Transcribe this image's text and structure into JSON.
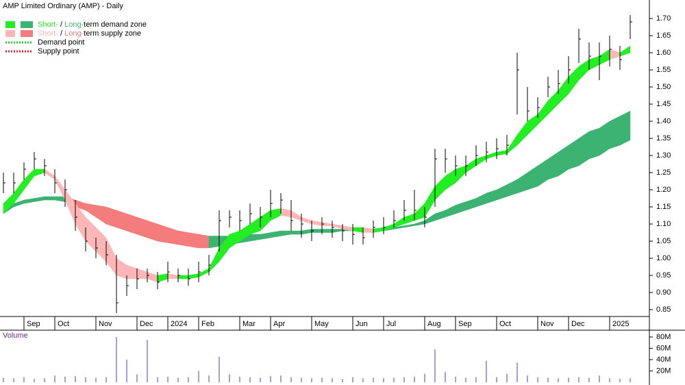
{
  "chart_data": {
    "type": "ohlc",
    "title": "AMP Limited Ordinary (AMP) - Daily",
    "categories": [
      null,
      null,
      "Sep",
      null,
      null,
      "Oct",
      null,
      null,
      null,
      "Nov",
      null,
      null,
      null,
      "Dec",
      null,
      null,
      "2024",
      null,
      null,
      "Feb",
      null,
      null,
      null,
      "Mar",
      null,
      null,
      "Apr",
      null,
      null,
      null,
      "May",
      null,
      null,
      null,
      "Jun",
      null,
      null,
      "Jul",
      null,
      null,
      null,
      "Aug",
      null,
      null,
      "Sep",
      null,
      null,
      null,
      "Oct",
      null,
      null,
      null,
      "Nov",
      null,
      null,
      "Dec",
      null,
      null,
      null,
      "2025",
      null,
      null
    ],
    "high": [
      1.25,
      1.25,
      1.28,
      1.31,
      1.29,
      1.26,
      1.23,
      1.17,
      1.09,
      1.06,
      1.05,
      1.01,
      0.95,
      0.97,
      0.97,
      0.96,
      0.99,
      0.97,
      0.97,
      0.99,
      1.01,
      1.14,
      1.14,
      1.14,
      1.16,
      1.15,
      1.2,
      1.19,
      1.17,
      1.13,
      1.11,
      1.12,
      1.11,
      1.1,
      1.1,
      1.09,
      1.11,
      1.12,
      1.14,
      1.17,
      1.2,
      1.15,
      1.32,
      1.32,
      1.3,
      1.3,
      1.33,
      1.34,
      1.35,
      1.36,
      1.6,
      1.5,
      1.47,
      1.53,
      1.55,
      1.59,
      1.67,
      1.63,
      1.63,
      1.65,
      1.62,
      1.71
    ],
    "low": [
      1.19,
      1.19,
      1.23,
      1.26,
      1.24,
      1.19,
      1.15,
      1.08,
      1.02,
      1.0,
      0.98,
      0.84,
      0.89,
      0.91,
      0.93,
      0.91,
      0.93,
      0.93,
      0.92,
      0.93,
      0.95,
      1.02,
      1.09,
      1.08,
      1.1,
      1.09,
      1.12,
      1.13,
      1.08,
      1.06,
      1.05,
      1.07,
      1.06,
      1.05,
      1.04,
      1.04,
      1.06,
      1.07,
      1.09,
      1.11,
      1.11,
      1.09,
      1.15,
      1.25,
      1.24,
      1.24,
      1.27,
      1.28,
      1.29,
      1.3,
      1.42,
      1.4,
      1.41,
      1.47,
      1.48,
      1.51,
      1.57,
      1.55,
      1.52,
      1.56,
      1.55,
      1.64
    ],
    "close": [
      1.22,
      1.22,
      1.26,
      1.29,
      1.27,
      1.22,
      1.2,
      1.12,
      1.05,
      1.03,
      1.01,
      0.87,
      0.92,
      0.94,
      0.95,
      0.93,
      0.96,
      0.95,
      0.94,
      0.96,
      0.98,
      1.11,
      1.12,
      1.11,
      1.13,
      1.12,
      1.16,
      1.17,
      1.11,
      1.1,
      1.08,
      1.1,
      1.09,
      1.08,
      1.07,
      1.06,
      1.09,
      1.09,
      1.11,
      1.14,
      1.14,
      1.12,
      1.29,
      1.29,
      1.27,
      1.27,
      1.3,
      1.31,
      1.32,
      1.33,
      1.55,
      1.43,
      1.44,
      1.5,
      1.51,
      1.55,
      1.64,
      1.59,
      1.59,
      1.61,
      1.58,
      1.69
    ],
    "short_zone": {
      "upper": [
        1.16,
        1.19,
        1.23,
        1.26,
        1.26,
        1.24,
        1.2,
        1.16,
        1.12,
        1.09,
        1.06,
        1.0,
        0.98,
        0.97,
        0.96,
        0.95,
        0.955,
        0.95,
        0.95,
        0.955,
        0.97,
        1.03,
        1.07,
        1.08,
        1.1,
        1.12,
        1.14,
        1.145,
        1.14,
        1.12,
        1.11,
        1.105,
        1.1,
        1.095,
        1.09,
        1.09,
        1.085,
        1.09,
        1.1,
        1.12,
        1.13,
        1.16,
        1.21,
        1.24,
        1.26,
        1.27,
        1.29,
        1.3,
        1.31,
        1.315,
        1.36,
        1.4,
        1.42,
        1.46,
        1.49,
        1.53,
        1.56,
        1.58,
        1.59,
        1.61,
        1.6,
        1.62
      ],
      "lower": [
        1.13,
        1.16,
        1.2,
        1.24,
        1.25,
        1.23,
        1.17,
        1.1,
        1.05,
        1.02,
        0.99,
        0.95,
        0.94,
        0.94,
        0.94,
        0.93,
        0.94,
        0.94,
        0.94,
        0.945,
        0.96,
        0.99,
        1.03,
        1.05,
        1.07,
        1.08,
        1.11,
        1.125,
        1.12,
        1.11,
        1.1,
        1.095,
        1.095,
        1.085,
        1.08,
        1.075,
        1.075,
        1.08,
        1.09,
        1.1,
        1.11,
        1.12,
        1.17,
        1.2,
        1.22,
        1.25,
        1.27,
        1.29,
        1.3,
        1.305,
        1.33,
        1.36,
        1.39,
        1.42,
        1.45,
        1.48,
        1.52,
        1.55,
        1.565,
        1.58,
        1.59,
        1.6
      ]
    },
    "long_zone": {
      "upper": [
        1.14,
        1.16,
        1.17,
        1.175,
        1.18,
        1.18,
        1.18,
        1.17,
        1.16,
        1.155,
        1.15,
        1.14,
        1.13,
        1.12,
        1.11,
        1.1,
        1.09,
        1.08,
        1.075,
        1.07,
        1.065,
        1.065,
        1.065,
        1.065,
        1.07,
        1.07,
        1.075,
        1.08,
        1.08,
        1.08,
        1.085,
        1.085,
        1.085,
        1.085,
        1.085,
        1.085,
        1.085,
        1.09,
        1.09,
        1.095,
        1.1,
        1.11,
        1.13,
        1.14,
        1.155,
        1.165,
        1.175,
        1.19,
        1.2,
        1.215,
        1.23,
        1.25,
        1.27,
        1.29,
        1.31,
        1.33,
        1.35,
        1.37,
        1.38,
        1.4,
        1.415,
        1.43
      ],
      "lower": [
        1.13,
        1.15,
        1.16,
        1.165,
        1.17,
        1.17,
        1.165,
        1.15,
        1.14,
        1.12,
        1.1,
        1.09,
        1.08,
        1.07,
        1.06,
        1.05,
        1.045,
        1.04,
        1.035,
        1.03,
        1.03,
        1.035,
        1.04,
        1.045,
        1.05,
        1.055,
        1.06,
        1.065,
        1.07,
        1.07,
        1.075,
        1.075,
        1.075,
        1.08,
        1.08,
        1.08,
        1.08,
        1.08,
        1.085,
        1.09,
        1.095,
        1.1,
        1.11,
        1.12,
        1.13,
        1.14,
        1.15,
        1.16,
        1.17,
        1.18,
        1.19,
        1.2,
        1.21,
        1.23,
        1.24,
        1.26,
        1.27,
        1.29,
        1.3,
        1.32,
        1.33,
        1.345
      ]
    },
    "ylim": [
      0.83,
      1.75
    ],
    "yticks": [
      0.85,
      {
        "value": 0.9,
        "label": "0.90"
      },
      0.95,
      {
        "value": 1.0,
        "label": "1.00"
      },
      1.05,
      {
        "value": 1.1,
        "label": "1.10"
      },
      1.15,
      {
        "value": 1.2,
        "label": "1.20"
      },
      1.25,
      {
        "value": 1.3,
        "label": "1.30"
      },
      1.35,
      {
        "value": 1.4,
        "label": "1.40"
      },
      1.45,
      {
        "value": 1.5,
        "label": "1.50"
      },
      1.55,
      {
        "value": 1.6,
        "label": "1.60"
      },
      1.65,
      {
        "value": 1.7,
        "label": "1.70"
      }
    ],
    "colors": {
      "bar": "#000000",
      "short_demand": "#22ee22",
      "long_demand": "#3cb371",
      "short_supply": "#ffb6b6",
      "long_supply": "#f47c7c",
      "volume": "#6a5acd"
    },
    "legend": [
      {
        "parts": [
          "Short-",
          " / ",
          "Long-",
          "term demand zone"
        ],
        "colors": [
          "#22ee22",
          "#000000",
          "#3cb371",
          "#000000"
        ]
      },
      {
        "parts": [
          "Short-",
          " / ",
          "Long-",
          "term supply zone"
        ],
        "colors": [
          "#ffb6b6",
          "#000000",
          "#f47c7c",
          "#000000"
        ]
      },
      {
        "parts": [
          "Demand point"
        ],
        "colors": [
          "#22cc22"
        ]
      },
      {
        "parts": [
          "Supply point"
        ],
        "colors": [
          "#ee2222"
        ]
      }
    ],
    "volume": {
      "label": "Volume",
      "values": [
        8000000.0,
        7000000.0,
        9000000.0,
        6000000.0,
        7000000.0,
        12000000.0,
        10000000.0,
        11000000.0,
        9000000.0,
        8000000.0,
        9000000.0,
        80000000.0,
        40000000.0,
        14000000.0,
        75000000.0,
        9000000.0,
        10000000.0,
        8000000.0,
        9000000.0,
        20000000.0,
        12000000.0,
        45000000.0,
        14000000.0,
        10000000.0,
        9000000.0,
        8000000.0,
        11000000.0,
        12000000.0,
        9000000.0,
        8000000.0,
        7000000.0,
        8000000.0,
        7000000.0,
        6000000.0,
        9000000.0,
        7000000.0,
        8000000.0,
        7000000.0,
        8000000.0,
        9000000.0,
        10000000.0,
        15000000.0,
        58000000.0,
        18000000.0,
        10000000.0,
        8000000.0,
        9000000.0,
        38000000.0,
        9000000.0,
        15000000.0,
        35000000.0,
        12000000.0,
        9000000.0,
        8000000.0,
        7000000.0,
        8000000.0,
        9000000.0,
        8000000.0,
        12000000.0,
        7000000.0,
        6000000.0,
        7000000.0
      ],
      "ylim": [
        0,
        92000000
      ],
      "yticks": [
        {
          "value": 20000000,
          "label": "20M"
        },
        {
          "value": 40000000,
          "label": "40M"
        },
        {
          "value": 60000000,
          "label": "60M"
        },
        {
          "value": 80000000,
          "label": "80M"
        }
      ]
    }
  }
}
